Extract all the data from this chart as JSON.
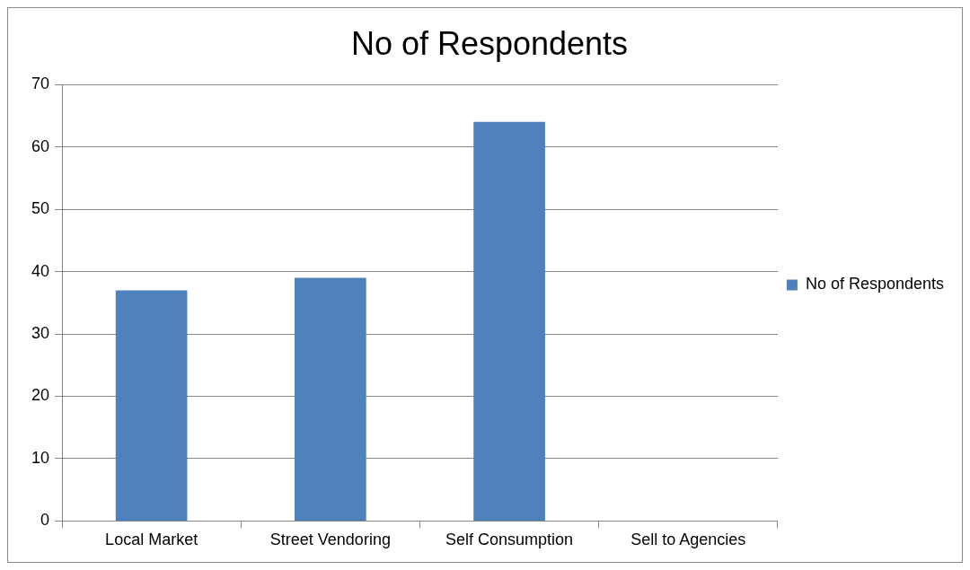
{
  "chart_data": {
    "type": "bar",
    "title": "No of Respondents",
    "categories": [
      "Local Market",
      "Street Vendoring",
      "Self Consumption",
      "Sell to Agencies"
    ],
    "series": [
      {
        "name": "No of Respondents",
        "color": "#4f81bd",
        "values": [
          37,
          39,
          64,
          0
        ]
      }
    ],
    "ylim": [
      0,
      70
    ],
    "yticks": [
      0,
      10,
      20,
      30,
      40,
      50,
      60,
      70
    ],
    "grid": "y",
    "legend": "right"
  }
}
